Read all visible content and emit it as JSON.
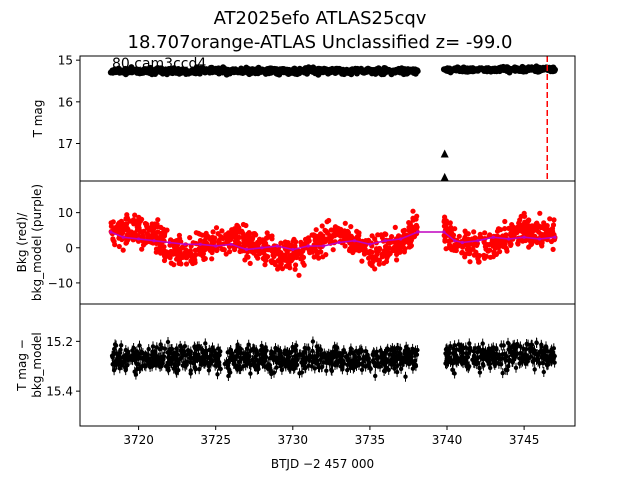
{
  "titles": {
    "line1": "AT2025efo  ATLAS25cqv",
    "line2": "18.707orange-ATLAS Unclassified z= -99.0",
    "overlay": "80 cam3ccd4"
  },
  "chart_data": [
    {
      "type": "scatter",
      "panel": "top",
      "ylabel": "T mag",
      "ylim": [
        17.9,
        14.9
      ],
      "y_inverted": true,
      "yticks": [
        15,
        16,
        17
      ],
      "xlim": [
        3716.2,
        3748.3
      ],
      "segments": [
        {
          "x_range": [
            3718.2,
            3738.1
          ],
          "y_mean": 15.26,
          "y_spread": 0.07,
          "color": "#000000"
        },
        {
          "x_range": [
            3739.8,
            3747.0
          ],
          "y_mean": 15.22,
          "y_spread": 0.06,
          "color": "#000000"
        }
      ],
      "upper_limits": [
        {
          "x": 3739.85,
          "y": 17.24
        },
        {
          "x": 3739.85,
          "y": 17.8
        }
      ],
      "vline": {
        "x": 3746.5,
        "color": "#ff0000",
        "style": "dashed"
      }
    },
    {
      "type": "scatter",
      "panel": "middle",
      "ylabel": "Bkg (red)/\nbkg_model (purple)",
      "ylim": [
        -16,
        19
      ],
      "yticks": [
        -10,
        0,
        10
      ],
      "xlim": [
        3716.2,
        3748.3
      ],
      "series": [
        {
          "name": "Bkg",
          "color": "#ff0000",
          "kind": "points",
          "segments": [
            {
              "x_range": [
                3718.2,
                3738.1
              ]
            },
            {
              "x_range": [
                3739.8,
                3747.0
              ]
            }
          ],
          "typical_range": [
            -10,
            11
          ]
        },
        {
          "name": "bkg_model",
          "color": "#bf00bf",
          "kind": "line",
          "x": [
            3718.2,
            3719,
            3720,
            3721,
            3722,
            3723,
            3724,
            3725,
            3726,
            3727,
            3728,
            3729,
            3730,
            3731,
            3732,
            3733,
            3734,
            3735,
            3736,
            3737,
            3738.1,
            3739.8,
            3740.5,
            3741,
            3742,
            3743,
            3744,
            3745,
            3746,
            3747
          ],
          "y": [
            4.5,
            3.0,
            2.5,
            2.0,
            1.5,
            1.0,
            1.0,
            0.5,
            1.0,
            -0.5,
            0.0,
            0.5,
            -0.5,
            0.5,
            0.5,
            1.5,
            2.0,
            1.0,
            2.0,
            2.5,
            4.5,
            4.5,
            2.0,
            1.5,
            2.0,
            3.0,
            2.5,
            3.0,
            2.5,
            3.0
          ]
        }
      ]
    },
    {
      "type": "scatter",
      "panel": "bottom",
      "ylabel": "T mag −\nbkg_model",
      "ylim": [
        15.54,
        15.05
      ],
      "y_inverted": true,
      "yticks": [
        15.2,
        15.4
      ],
      "xlabel": "BTJD −2 457 000",
      "xticks": [
        3720,
        3725,
        3730,
        3735,
        3740,
        3745
      ],
      "xlim": [
        3716.2,
        3748.3
      ],
      "segments": [
        {
          "x_range": [
            3718.2,
            3738.1
          ],
          "y_mean": 15.27,
          "y_spread": 0.05,
          "color": "#000000"
        },
        {
          "x_range": [
            3739.8,
            3747.0
          ],
          "y_mean": 15.26,
          "y_spread": 0.05,
          "color": "#000000"
        }
      ]
    }
  ]
}
